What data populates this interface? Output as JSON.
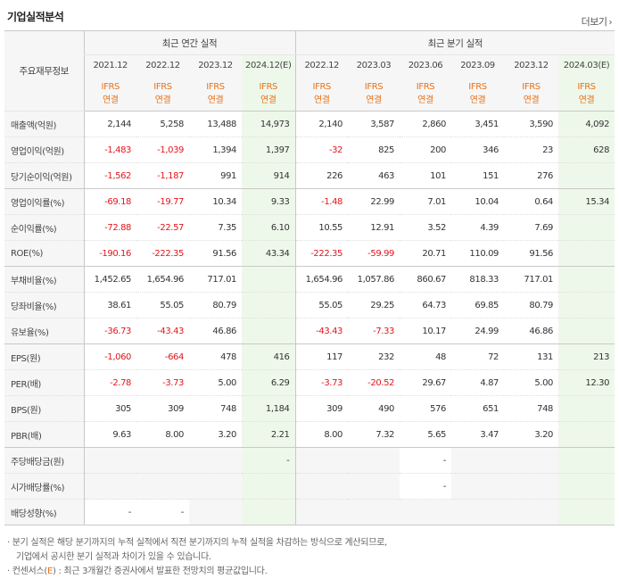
{
  "title": "기업실적분석",
  "more_label": "더보기",
  "more_icon": "chevron-right-icon",
  "header": {
    "row_label": "주요재무정보",
    "annual_label": "최근 연간 실적",
    "quarter_label": "최근 분기 실적",
    "annual_periods": [
      "2021.12",
      "2022.12",
      "2023.12",
      "2024.12(E)"
    ],
    "quarter_periods": [
      "2022.12",
      "2023.03",
      "2023.06",
      "2023.09",
      "2023.12",
      "2024.03(E)"
    ],
    "ifrs_top": "IFRS",
    "ifrs_bottom": "연결"
  },
  "rows": [
    {
      "label": "매출액(억원)",
      "values": [
        "2,144",
        "5,258",
        "13,488",
        "14,973",
        "2,140",
        "3,587",
        "2,860",
        "3,451",
        "3,590",
        "4,092"
      ]
    },
    {
      "label": "영업이익(억원)",
      "values": [
        "-1,483",
        "-1,039",
        "1,394",
        "1,397",
        "-32",
        "825",
        "200",
        "346",
        "23",
        "628"
      ]
    },
    {
      "label": "당기순이익(억원)",
      "values": [
        "-1,562",
        "-1,187",
        "991",
        "914",
        "226",
        "463",
        "101",
        "151",
        "276",
        ""
      ]
    },
    {
      "label": "영업이익률(%)",
      "values": [
        "-69.18",
        "-19.77",
        "10.34",
        "9.33",
        "-1.48",
        "22.99",
        "7.01",
        "10.04",
        "0.64",
        "15.34"
      ]
    },
    {
      "label": "순이익률(%)",
      "values": [
        "-72.88",
        "-22.57",
        "7.35",
        "6.10",
        "10.55",
        "12.91",
        "3.52",
        "4.39",
        "7.69",
        ""
      ]
    },
    {
      "label": "ROE(%)",
      "values": [
        "-190.16",
        "-222.35",
        "91.56",
        "43.34",
        "-222.35",
        "-59.99",
        "20.71",
        "110.09",
        "91.56",
        ""
      ]
    },
    {
      "label": "부채비율(%)",
      "values": [
        "1,452.65",
        "1,654.96",
        "717.01",
        "",
        "1,654.96",
        "1,057.86",
        "860.67",
        "818.33",
        "717.01",
        ""
      ]
    },
    {
      "label": "당좌비율(%)",
      "values": [
        "38.61",
        "55.05",
        "80.79",
        "",
        "55.05",
        "29.25",
        "64.73",
        "69.85",
        "80.79",
        ""
      ]
    },
    {
      "label": "유보율(%)",
      "values": [
        "-36.73",
        "-43.43",
        "46.86",
        "",
        "-43.43",
        "-7.33",
        "10.17",
        "24.99",
        "46.86",
        ""
      ]
    },
    {
      "label": "EPS(원)",
      "values": [
        "-1,060",
        "-664",
        "478",
        "416",
        "117",
        "232",
        "48",
        "72",
        "131",
        "213"
      ]
    },
    {
      "label": "PER(배)",
      "values": [
        "-2.78",
        "-3.73",
        "5.00",
        "6.29",
        "-3.73",
        "-20.52",
        "29.67",
        "4.87",
        "5.00",
        "12.30"
      ]
    },
    {
      "label": "BPS(원)",
      "values": [
        "305",
        "309",
        "748",
        "1,184",
        "309",
        "490",
        "576",
        "651",
        "748",
        ""
      ]
    },
    {
      "label": "PBR(배)",
      "values": [
        "9.63",
        "8.00",
        "3.20",
        "2.21",
        "8.00",
        "7.32",
        "5.65",
        "3.47",
        "3.20",
        ""
      ]
    },
    {
      "label": "주당배당금(원)",
      "values": [
        "",
        "",
        "",
        "-",
        "",
        "",
        "-",
        "",
        "",
        ""
      ]
    },
    {
      "label": "시가배당률(%)",
      "values": [
        "",
        "",
        "",
        "",
        "",
        "",
        "-",
        "",
        "",
        ""
      ]
    },
    {
      "label": "배당성향(%)",
      "values": [
        "-",
        "-",
        "",
        "",
        "",
        "",
        "",
        "",
        "",
        ""
      ]
    }
  ],
  "notes": {
    "line1": "· 분기 실적은 해당 분기까지의 누적 실적에서 직전 분기까지의 누적 실적을 차감하는 방식으로 계산되므로,",
    "line2": "기업에서 공시한 분기 실적과 차이가 있을 수 있습니다.",
    "line3_prefix": "· 컨센서스(",
    "line3_e": "E",
    "line3_suffix": ") : 최근 3개월간 증권사에서 발표한 전망치의 평균값입니다."
  },
  "colors": {
    "negative": "#e4151c",
    "ifrs": "#e8731b",
    "estimate_bg": "#eef8ea",
    "header_bg": "#f6f6f6"
  }
}
